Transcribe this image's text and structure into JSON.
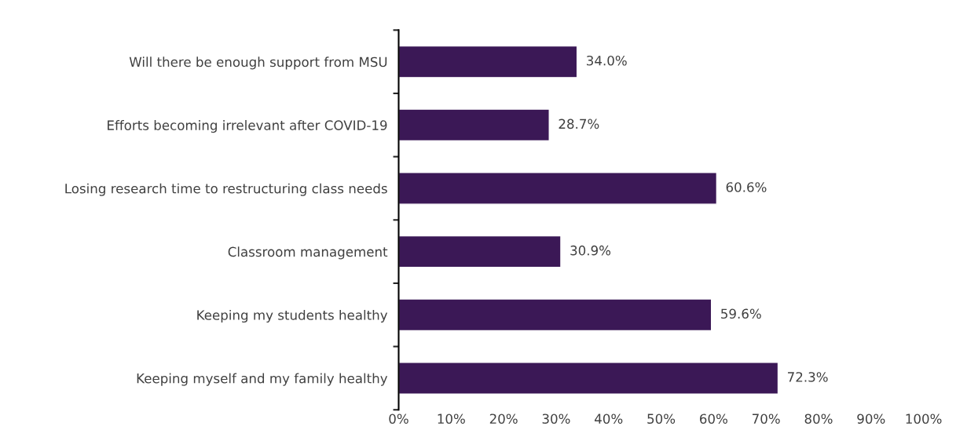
{
  "chart_data": {
    "type": "bar",
    "orientation": "horizontal",
    "categories": [
      "Will there be enough support from MSU",
      "Efforts becoming irrelevant after COVID-19",
      "Losing research time to restructuring class needs",
      "Classroom management",
      "Keeping my students healthy",
      "Keeping myself and my family healthy"
    ],
    "values": [
      34.0,
      28.7,
      60.6,
      30.9,
      59.6,
      72.3
    ],
    "value_labels": [
      "34.0%",
      "28.7%",
      "60.6%",
      "30.9%",
      "59.6%",
      "72.3%"
    ],
    "color": "#3b1856",
    "xlim": [
      0,
      100
    ],
    "xticks": [
      {
        "value": 0,
        "label": "0%"
      },
      {
        "value": 10,
        "label": "10%"
      },
      {
        "value": 20,
        "label": "20%"
      },
      {
        "value": 30,
        "label": "30%"
      },
      {
        "value": 40,
        "label": "40%"
      },
      {
        "value": 50,
        "label": "50%"
      },
      {
        "value": 60,
        "label": "60%"
      },
      {
        "value": 70,
        "label": "70%"
      },
      {
        "value": 80,
        "label": "80%"
      },
      {
        "value": 90,
        "label": "90%"
      },
      {
        "value": 100,
        "label": "100%"
      }
    ],
    "grid": false,
    "legend": false
  }
}
